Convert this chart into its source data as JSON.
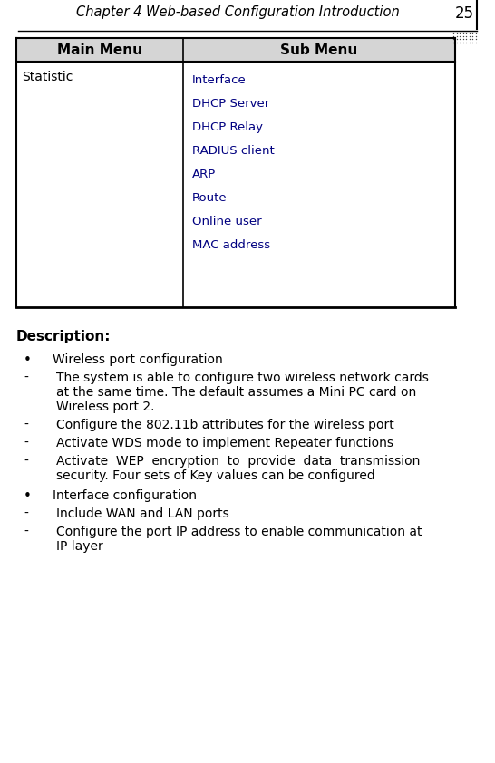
{
  "page_title": "Chapter 4 Web-based Configuration Introduction",
  "page_number": "25",
  "bg_color": "#ffffff",
  "header_bg": "#d8d8d8",
  "table_border_color": "#000000",
  "main_menu_header": "Main Menu",
  "sub_menu_header": "Sub Menu",
  "main_menu_item": "Statistic",
  "sub_menu_items": [
    "Interface",
    "DHCP Server",
    "DHCP Relay",
    "RADIUS client",
    "ARP",
    "Route",
    "Online user",
    "MAC address"
  ],
  "sub_menu_color": "#000080",
  "description_title": "Description:",
  "bullet_items": [
    "Wireless port configuration",
    "Interface configuration"
  ],
  "dash_items_1": [
    [
      "The system is able to configure two wireless network cards",
      "at the same time. The default assumes a Mini PC card on",
      "Wireless port 2."
    ],
    [
      "Configure the 802.11b attributes for the wireless port"
    ],
    [
      "Activate WDS mode to implement Repeater functions"
    ],
    [
      "Activate  WEP  encryption  to  provide  data  transmission",
      "security. Four sets of Key values can be configured"
    ]
  ],
  "dash_items_2": [
    [
      "Include WAN and LAN ports"
    ],
    [
      "Configure the port IP address to enable communication at",
      "IP layer"
    ]
  ],
  "title_font_size": 10.5,
  "body_font_size": 10
}
